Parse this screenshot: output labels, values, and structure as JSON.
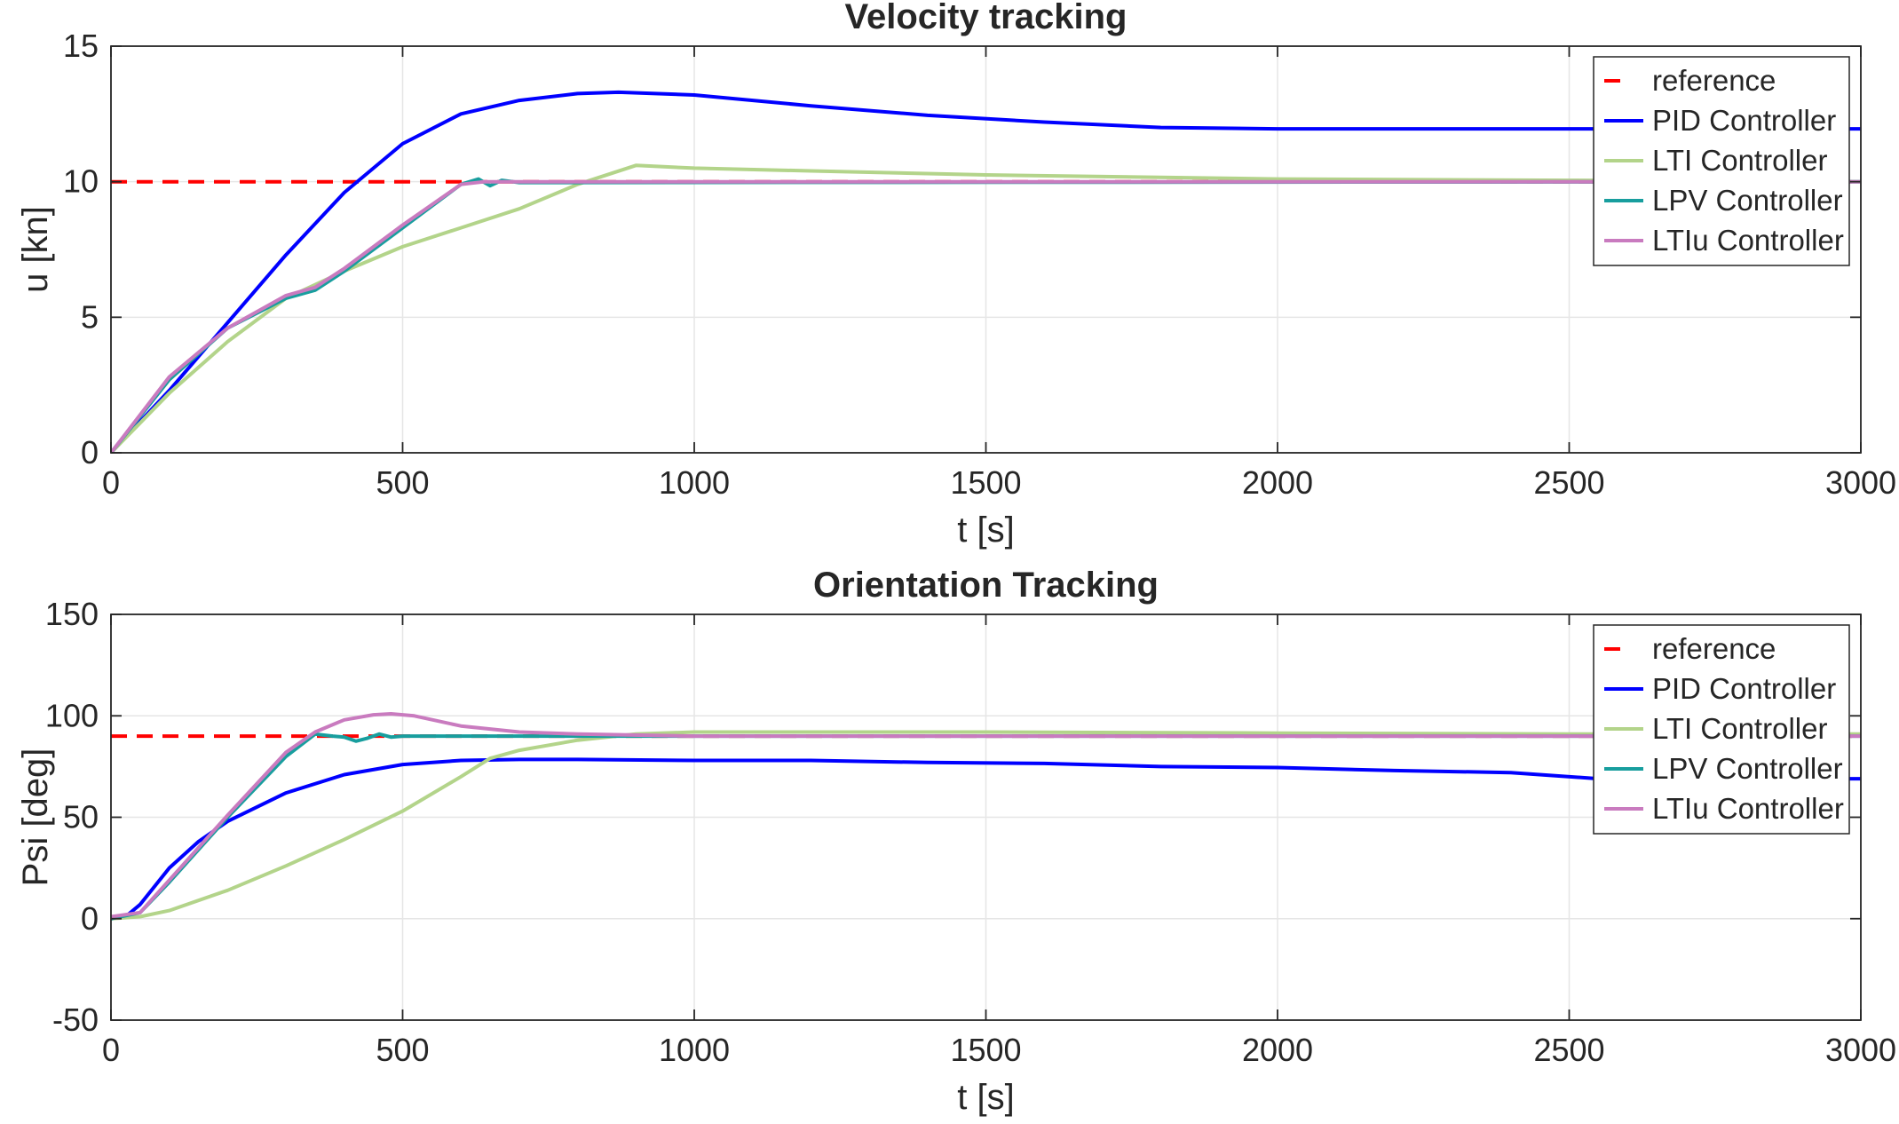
{
  "chart_data": [
    {
      "type": "line",
      "title": "Velocity tracking",
      "xlabel": "t [s]",
      "ylabel": "u [kn]",
      "xlim": [
        0,
        3000
      ],
      "ylim": [
        0,
        15
      ],
      "xticks": [
        "0",
        "500",
        "1000",
        "1500",
        "2000",
        "2500",
        "3000"
      ],
      "yticks": [
        "0",
        "5",
        "10",
        "15"
      ],
      "grid": true,
      "legend_position": "top-right",
      "series": [
        {
          "name": "reference",
          "color": "#ff0000",
          "dash": true,
          "x": [
            0,
            3000
          ],
          "y": [
            10,
            10
          ]
        },
        {
          "name": "PID Controller",
          "color": "#0000ff",
          "x": [
            0,
            100,
            200,
            300,
            400,
            500,
            600,
            700,
            800,
            870,
            1000,
            1200,
            1400,
            1600,
            1800,
            2000,
            2200,
            2400,
            2550,
            2700,
            3000
          ],
          "y": [
            0,
            2.3,
            4.8,
            7.3,
            9.6,
            11.4,
            12.5,
            13.0,
            13.25,
            13.3,
            13.2,
            12.8,
            12.45,
            12.2,
            12.0,
            11.95,
            11.95,
            11.95,
            11.95,
            11.95,
            11.95
          ]
        },
        {
          "name": "LTI Controller",
          "color": "#b3d48a",
          "x": [
            0,
            100,
            200,
            300,
            400,
            500,
            600,
            700,
            800,
            900,
            1000,
            1200,
            1500,
            2000,
            2500,
            3000
          ],
          "y": [
            0,
            2.2,
            4.1,
            5.7,
            6.7,
            7.6,
            8.3,
            9.0,
            9.9,
            10.6,
            10.5,
            10.4,
            10.25,
            10.1,
            10.05,
            10.0
          ]
        },
        {
          "name": "LPV Controller",
          "color": "#189e9e",
          "x": [
            0,
            100,
            200,
            300,
            350,
            400,
            500,
            600,
            630,
            650,
            670,
            700,
            3000
          ],
          "y": [
            0,
            2.7,
            4.6,
            5.7,
            6.0,
            6.7,
            8.3,
            9.9,
            10.1,
            9.85,
            10.05,
            9.97,
            10.0
          ]
        },
        {
          "name": "LTIu Controller",
          "color": "#c97bbf",
          "x": [
            0,
            100,
            200,
            300,
            350,
            400,
            500,
            600,
            640,
            700,
            3000
          ],
          "y": [
            0,
            2.8,
            4.6,
            5.8,
            6.1,
            6.8,
            8.4,
            9.9,
            10.0,
            10.0,
            10.0
          ]
        }
      ]
    },
    {
      "type": "line",
      "title": "Orientation Tracking",
      "xlabel": "t [s]",
      "ylabel": "Psi [deg]",
      "xlim": [
        0,
        3000
      ],
      "ylim": [
        -50,
        150
      ],
      "xticks": [
        "0",
        "500",
        "1000",
        "1500",
        "2000",
        "2500",
        "3000"
      ],
      "yticks": [
        "-50",
        "0",
        "50",
        "100",
        "150"
      ],
      "grid": true,
      "legend_position": "top-right",
      "series": [
        {
          "name": "reference",
          "color": "#ff0000",
          "dash": true,
          "x": [
            0,
            3000
          ],
          "y": [
            90,
            90
          ]
        },
        {
          "name": "PID Controller",
          "color": "#0000ff",
          "x": [
            0,
            25,
            50,
            100,
            150,
            200,
            300,
            400,
            500,
            600,
            700,
            800,
            1000,
            1200,
            1400,
            1600,
            1800,
            2000,
            2200,
            2400,
            2550,
            2700,
            3000
          ],
          "y": [
            0,
            1,
            7,
            25,
            38,
            48,
            62,
            71,
            76,
            78,
            78.5,
            78.5,
            78,
            78,
            77,
            76.5,
            75,
            74.5,
            73,
            72,
            69,
            69,
            69
          ]
        },
        {
          "name": "LTI Controller",
          "color": "#b3d48a",
          "x": [
            0,
            50,
            100,
            200,
            300,
            400,
            500,
            600,
            650,
            700,
            800,
            900,
            1000,
            1500,
            2000,
            2500,
            3000
          ],
          "y": [
            0,
            1,
            4,
            14,
            26,
            39,
            53,
            70,
            79,
            83,
            88,
            91,
            92,
            92,
            91.5,
            91,
            91
          ]
        },
        {
          "name": "LPV Controller",
          "color": "#189e9e",
          "x": [
            0,
            50,
            100,
            200,
            300,
            350,
            380,
            400,
            420,
            440,
            460,
            480,
            500,
            550,
            600,
            3000
          ],
          "y": [
            0,
            3,
            18,
            50,
            80,
            91,
            90,
            89.5,
            87.5,
            89,
            91,
            89.5,
            90,
            90,
            90,
            90
          ]
        },
        {
          "name": "LTIu Controller",
          "color": "#c97bbf",
          "x": [
            0,
            50,
            100,
            200,
            300,
            350,
            400,
            450,
            480,
            520,
            600,
            700,
            800,
            1000,
            3000
          ],
          "y": [
            1,
            3,
            19,
            51,
            82,
            92,
            98,
            100.5,
            101,
            100,
            95,
            92,
            91,
            90,
            90
          ]
        }
      ]
    }
  ]
}
